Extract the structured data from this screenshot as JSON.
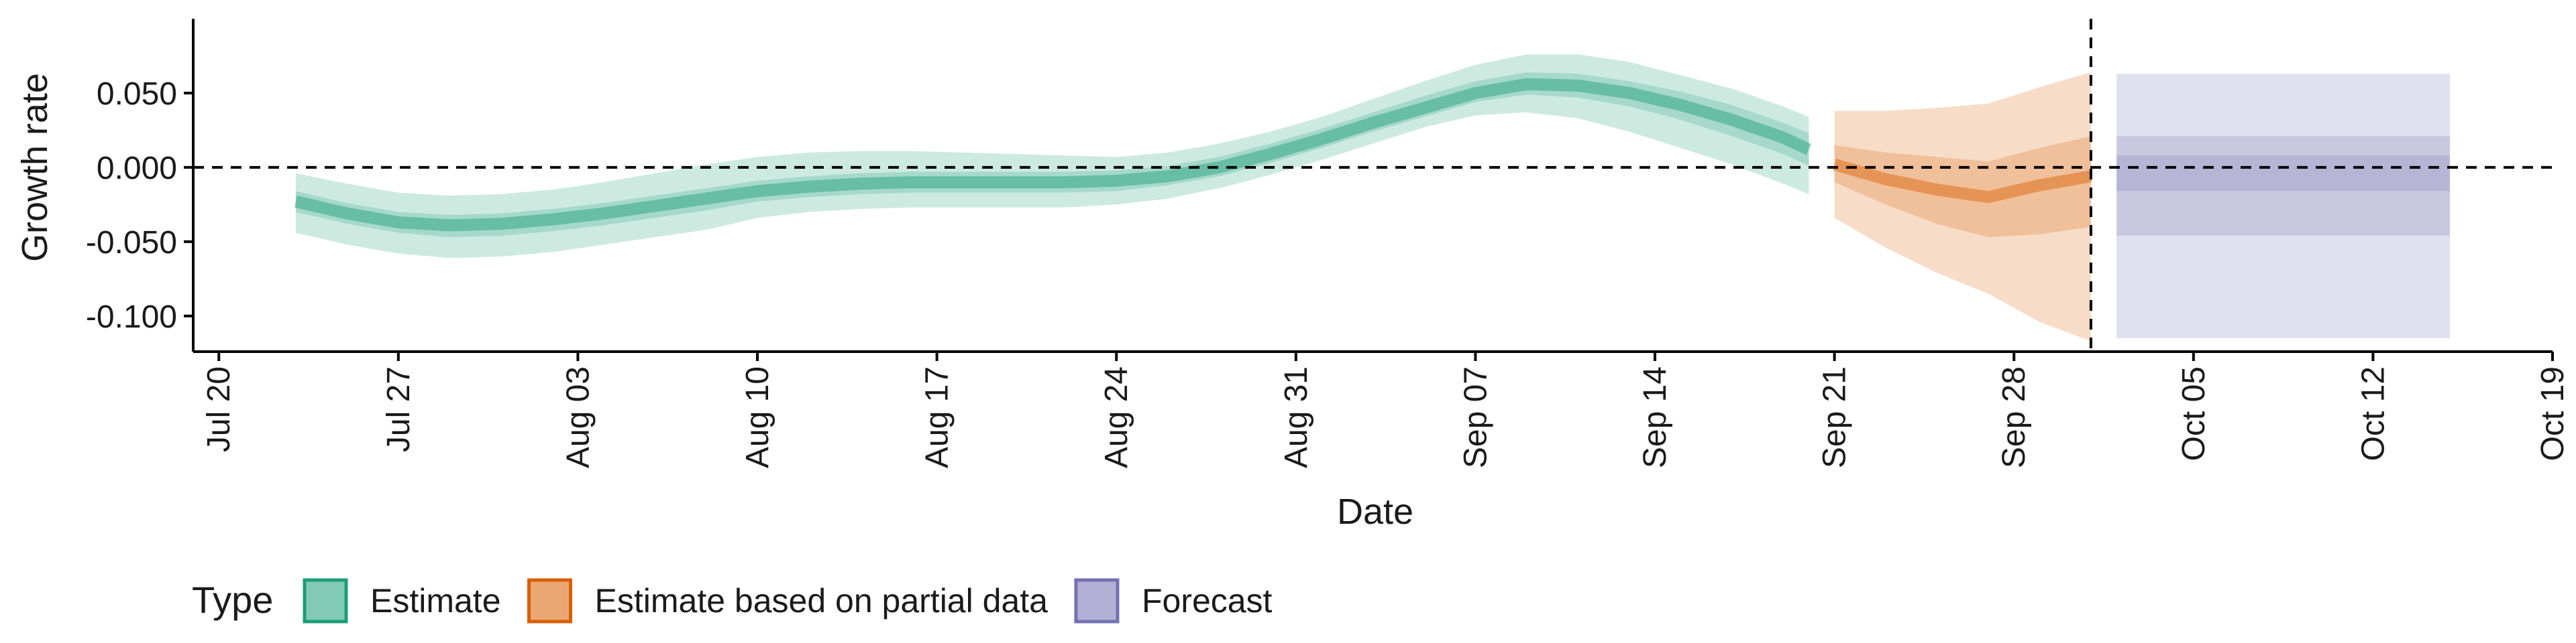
{
  "chart_data": {
    "type": "area",
    "title": "",
    "xlabel": "Date",
    "ylabel": "Growth rate",
    "x_ticks": [
      "Jul 20",
      "Jul 27",
      "Aug 03",
      "Aug 10",
      "Aug 17",
      "Aug 24",
      "Aug 31",
      "Sep 07",
      "Sep 14",
      "Sep 21",
      "Sep 28",
      "Oct 05",
      "Oct 12",
      "Oct 19"
    ],
    "x_tick_dates": [
      "2020-07-20",
      "2020-07-27",
      "2020-08-03",
      "2020-08-10",
      "2020-08-17",
      "2020-08-24",
      "2020-08-31",
      "2020-09-07",
      "2020-09-14",
      "2020-09-21",
      "2020-09-28",
      "2020-10-05",
      "2020-10-12",
      "2020-10-19"
    ],
    "xlim": [
      "2020-07-19",
      "2020-10-19"
    ],
    "y_ticks": [
      "0.050",
      "0.000",
      "-0.050",
      "-0.100"
    ],
    "y_tick_values": [
      0.05,
      0.0,
      -0.05,
      -0.1
    ],
    "ylim": [
      -0.124,
      0.1
    ],
    "reference_lines": {
      "y": 0.0,
      "x": "2020-10-01",
      "style": "dashed"
    },
    "grid": false,
    "legend": {
      "title": "Type",
      "placement": "bottom-left",
      "entries": [
        {
          "label": "Estimate",
          "color": "#1b9e77"
        },
        {
          "label": "Estimate based on partial data",
          "color": "#d95f02"
        },
        {
          "label": "Forecast",
          "color": "#7570b3"
        }
      ]
    },
    "series": [
      {
        "name": "Estimate",
        "color": "#1b9e77",
        "x": [
          "2020-07-23",
          "2020-07-25",
          "2020-07-27",
          "2020-07-29",
          "2020-07-31",
          "2020-08-02",
          "2020-08-04",
          "2020-08-06",
          "2020-08-08",
          "2020-08-10",
          "2020-08-12",
          "2020-08-14",
          "2020-08-16",
          "2020-08-18",
          "2020-08-20",
          "2020-08-22",
          "2020-08-24",
          "2020-08-26",
          "2020-08-28",
          "2020-08-30",
          "2020-09-01",
          "2020-09-03",
          "2020-09-05",
          "2020-09-07",
          "2020-09-09",
          "2020-09-11",
          "2020-09-13",
          "2020-09-15",
          "2020-09-17",
          "2020-09-19",
          "2020-09-20"
        ],
        "median": [
          -0.023,
          -0.031,
          -0.037,
          -0.039,
          -0.038,
          -0.035,
          -0.031,
          -0.026,
          -0.021,
          -0.016,
          -0.013,
          -0.011,
          -0.01,
          -0.01,
          -0.01,
          -0.01,
          -0.009,
          -0.006,
          0.0,
          0.009,
          0.019,
          0.03,
          0.04,
          0.05,
          0.056,
          0.055,
          0.05,
          0.042,
          0.032,
          0.02,
          0.012
        ],
        "lower_90": [
          -0.044,
          -0.052,
          -0.058,
          -0.061,
          -0.06,
          -0.057,
          -0.052,
          -0.047,
          -0.042,
          -0.034,
          -0.03,
          -0.028,
          -0.027,
          -0.027,
          -0.027,
          -0.027,
          -0.025,
          -0.021,
          -0.014,
          -0.005,
          0.005,
          0.016,
          0.027,
          0.035,
          0.037,
          0.033,
          0.024,
          0.013,
          0.002,
          -0.011,
          -0.018
        ],
        "upper_90": [
          -0.004,
          -0.011,
          -0.017,
          -0.019,
          -0.018,
          -0.015,
          -0.01,
          -0.004,
          0.002,
          0.007,
          0.01,
          0.011,
          0.011,
          0.01,
          0.009,
          0.008,
          0.007,
          0.01,
          0.016,
          0.024,
          0.034,
          0.046,
          0.058,
          0.069,
          0.076,
          0.076,
          0.071,
          0.062,
          0.053,
          0.041,
          0.034
        ],
        "lower_50": [
          -0.03,
          -0.038,
          -0.044,
          -0.047,
          -0.046,
          -0.043,
          -0.039,
          -0.034,
          -0.029,
          -0.023,
          -0.02,
          -0.018,
          -0.017,
          -0.017,
          -0.017,
          -0.017,
          -0.016,
          -0.012,
          -0.006,
          0.003,
          0.013,
          0.024,
          0.034,
          0.044,
          0.049,
          0.047,
          0.041,
          0.032,
          0.021,
          0.009,
          0.001
        ],
        "upper_50": [
          -0.016,
          -0.024,
          -0.03,
          -0.032,
          -0.031,
          -0.028,
          -0.024,
          -0.019,
          -0.014,
          -0.009,
          -0.006,
          -0.004,
          -0.003,
          -0.003,
          -0.003,
          -0.003,
          -0.002,
          0.001,
          0.007,
          0.016,
          0.026,
          0.037,
          0.048,
          0.058,
          0.064,
          0.063,
          0.058,
          0.051,
          0.042,
          0.03,
          0.023
        ]
      },
      {
        "name": "Estimate based on partial data",
        "color": "#d95f02",
        "x": [
          "2020-09-21",
          "2020-09-23",
          "2020-09-25",
          "2020-09-27",
          "2020-09-29",
          "2020-10-01"
        ],
        "median": [
          0.002,
          -0.008,
          -0.015,
          -0.02,
          -0.012,
          -0.006
        ],
        "lower_90": [
          -0.034,
          -0.054,
          -0.071,
          -0.085,
          -0.104,
          -0.117
        ],
        "upper_90": [
          0.038,
          0.038,
          0.04,
          0.043,
          0.054,
          0.064
        ],
        "lower_50": [
          -0.01,
          -0.025,
          -0.038,
          -0.047,
          -0.045,
          -0.04
        ],
        "upper_50": [
          0.015,
          0.01,
          0.007,
          0.004,
          0.013,
          0.021
        ]
      },
      {
        "name": "Forecast",
        "color": "#7570b3",
        "x": [
          "2020-10-02",
          "2020-10-15"
        ],
        "median": [
          -0.004,
          -0.004
        ],
        "lower_90": [
          -0.115,
          -0.115
        ],
        "upper_90": [
          0.063,
          0.063
        ],
        "lower_50": [
          -0.046,
          -0.046
        ],
        "upper_50": [
          0.021,
          0.021
        ],
        "lower_20": [
          -0.016,
          -0.016
        ],
        "upper_20": [
          0.008,
          0.008
        ]
      }
    ]
  }
}
